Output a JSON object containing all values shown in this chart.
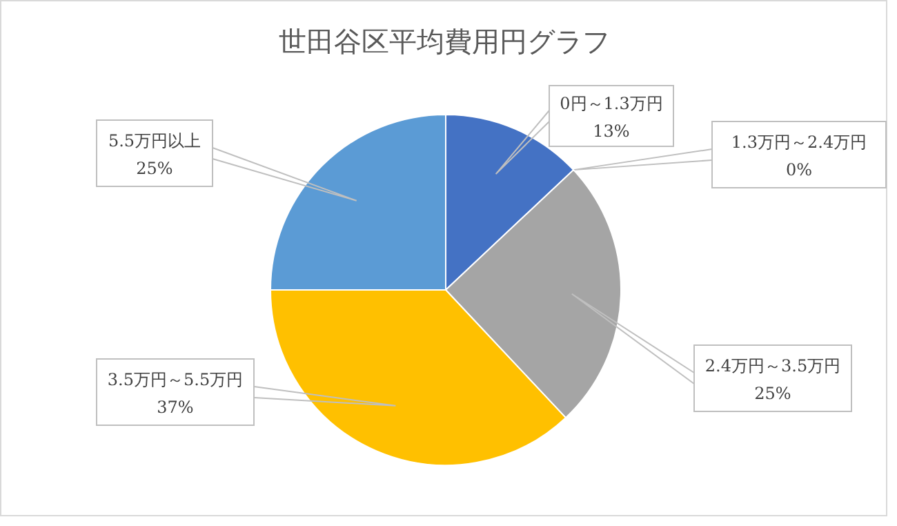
{
  "chart_data": {
    "type": "pie",
    "title": "世田谷区平均費用円グラフ",
    "categories": [
      "0円～1.3万円",
      "1.3万円～2.4万円",
      "2.4万円～3.5万円",
      "3.5万円～5.5万円",
      "5.5万円以上"
    ],
    "values": [
      13,
      0,
      25,
      37,
      25
    ],
    "colors": [
      "#4472c4",
      "#ed7d31",
      "#a5a5a5",
      "#ffc000",
      "#5b9bd5"
    ],
    "value_labels": [
      "13%",
      "0%",
      "25%",
      "37%",
      "25%"
    ]
  }
}
